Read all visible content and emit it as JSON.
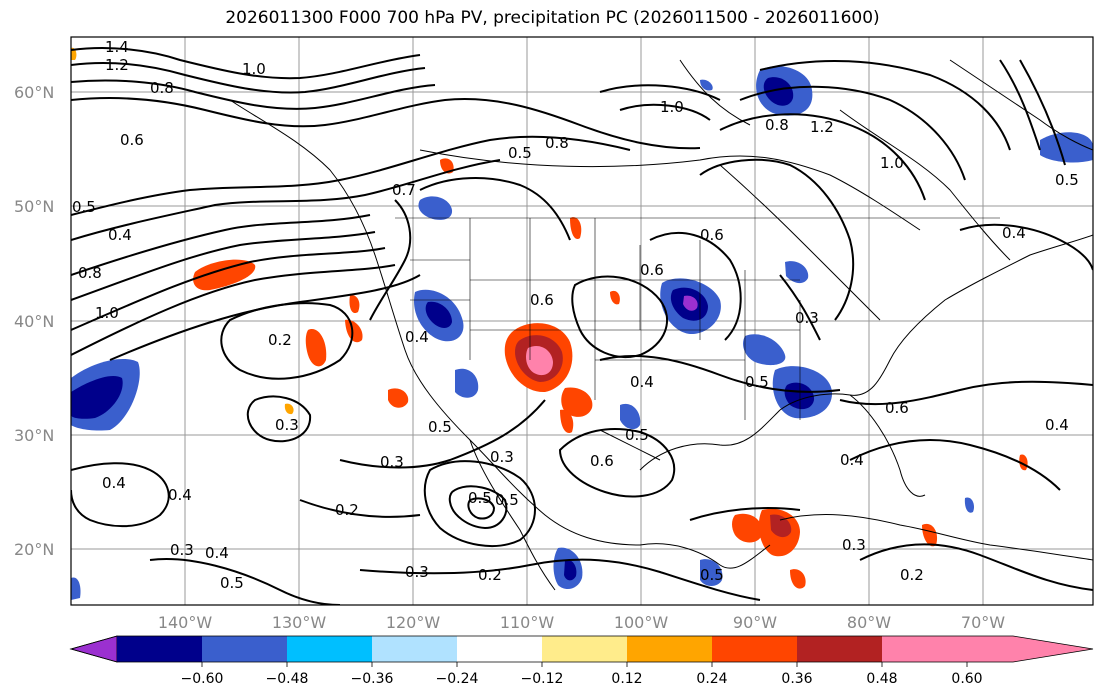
{
  "title": "2026011300 F000 700 hPa PV, precipitation PC (2026011500 - 2026011600)",
  "lat_labels": [
    "60°N",
    "50°N",
    "40°N",
    "30°N",
    "20°N"
  ],
  "lon_labels": [
    "140°W",
    "130°W",
    "120°W",
    "110°W",
    "100°W",
    "90°W",
    "80°W",
    "70°W"
  ],
  "colorbar": {
    "colors": [
      "#9b30d0",
      "#00008b",
      "#3a5fcd",
      "#00bfff",
      "#b0e2ff",
      "#ffffff",
      "#ffec8b",
      "#ffa500",
      "#ff4500",
      "#b22222",
      "#ff82ab"
    ],
    "tick_labels": [
      "−0.60",
      "−0.48",
      "−0.36",
      "−0.24",
      "−0.12",
      "0.12",
      "0.24",
      "0.36",
      "0.48",
      "0.60"
    ]
  },
  "contour_labels": [
    {
      "text": "1.4"
    },
    {
      "text": "1.2"
    },
    {
      "text": "1.0"
    },
    {
      "text": "0.8"
    },
    {
      "text": "0.6"
    },
    {
      "text": "0.5"
    },
    {
      "text": "0.4"
    },
    {
      "text": "0.7"
    },
    {
      "text": "0.5"
    },
    {
      "text": "0.4"
    },
    {
      "text": "0.8"
    },
    {
      "text": "1.0"
    },
    {
      "text": "0.2"
    },
    {
      "text": "0.3"
    },
    {
      "text": "0.4"
    },
    {
      "text": "0.5"
    },
    {
      "text": "0.6"
    },
    {
      "text": "0.6"
    },
    {
      "text": "0.4"
    },
    {
      "text": "0.3"
    },
    {
      "text": "0.5"
    },
    {
      "text": "0.3"
    },
    {
      "text": "0.2"
    },
    {
      "text": "0.4"
    },
    {
      "text": "0.4"
    },
    {
      "text": "0.3"
    },
    {
      "text": "0.5"
    },
    {
      "text": "0.5"
    },
    {
      "text": "0.3"
    },
    {
      "text": "0.2"
    },
    {
      "text": "0.5"
    },
    {
      "text": "0.6"
    },
    {
      "text": "0.6"
    },
    {
      "text": "0.3"
    },
    {
      "text": "0.4"
    },
    {
      "text": "0.5"
    },
    {
      "text": "0.6"
    },
    {
      "text": "0.4"
    },
    {
      "text": "0.4"
    },
    {
      "text": "0.3"
    },
    {
      "text": "0.2"
    },
    {
      "text": "1.0"
    },
    {
      "text": "0.8"
    },
    {
      "text": "1.2"
    },
    {
      "text": "1.0"
    },
    {
      "text": "0.5"
    },
    {
      "text": "0.8"
    },
    {
      "text": "0.5"
    }
  ]
}
